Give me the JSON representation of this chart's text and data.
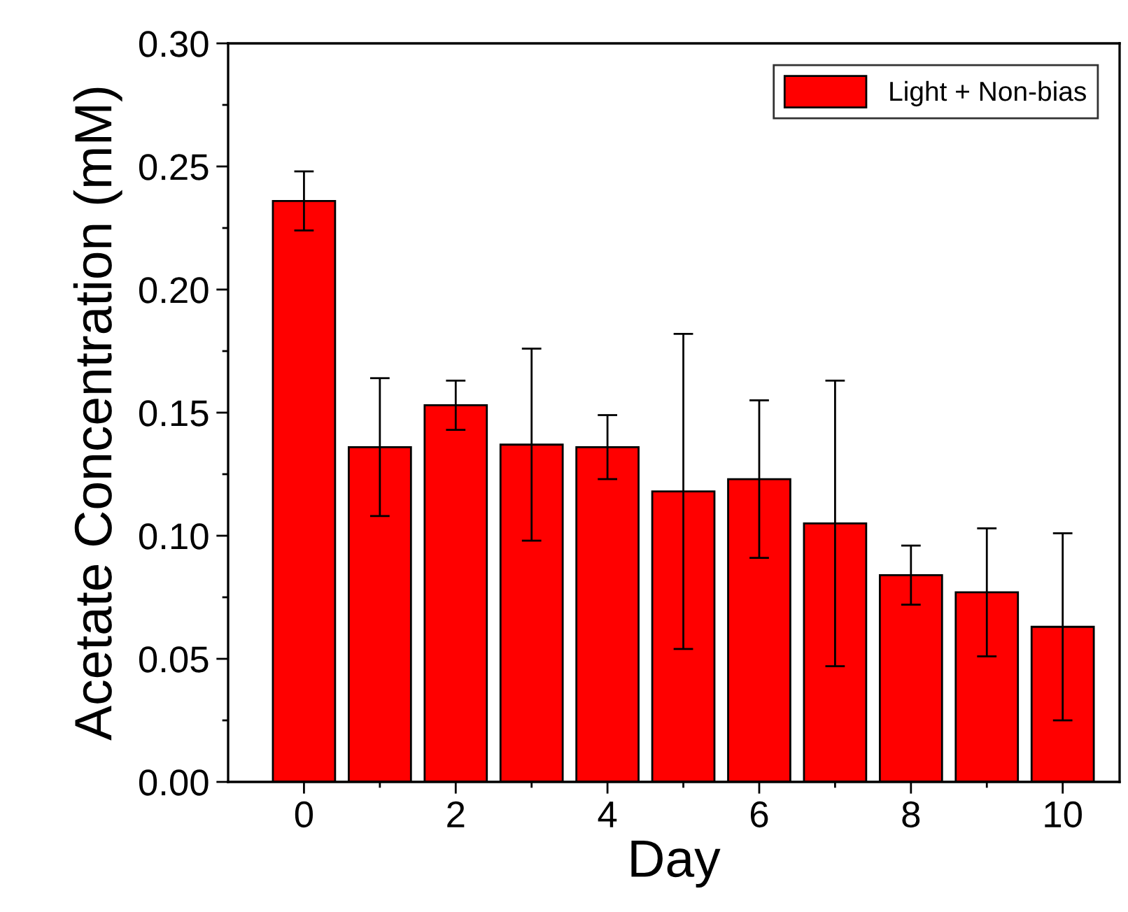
{
  "chart_data": {
    "type": "bar",
    "xlabel": "Day",
    "ylabel": "Acetate Concentration (mM)",
    "x": [
      0,
      1,
      2,
      3,
      4,
      5,
      6,
      7,
      8,
      9,
      10
    ],
    "series": [
      {
        "name": "Light + Non-bias",
        "color": "#ff0000",
        "values": [
          0.236,
          0.136,
          0.153,
          0.137,
          0.136,
          0.118,
          0.123,
          0.105,
          0.084,
          0.077,
          0.063
        ],
        "errors": [
          0.012,
          0.028,
          0.01,
          0.039,
          0.013,
          0.064,
          0.032,
          0.058,
          0.012,
          0.026,
          0.038
        ]
      }
    ],
    "xlim": [
      -1,
      10.75
    ],
    "ylim": [
      0,
      0.3
    ],
    "xticks": [
      0,
      {
        "value": 1,
        "label": null
      },
      2,
      {
        "value": 3,
        "label": null
      },
      4,
      {
        "value": 5,
        "label": null
      },
      6,
      {
        "value": 7,
        "label": null
      },
      8,
      {
        "value": 9,
        "label": null
      },
      10
    ],
    "yticks": [
      {
        "value": 0,
        "label": "0.00"
      },
      {
        "value": 0.025,
        "label": null
      },
      {
        "value": 0.05,
        "label": "0.05"
      },
      {
        "value": 0.075,
        "label": null
      },
      {
        "value": 0.1,
        "label": "0.10"
      },
      {
        "value": 0.125,
        "label": null
      },
      {
        "value": 0.15,
        "label": "0.15"
      },
      {
        "value": 0.175,
        "label": null
      },
      {
        "value": 0.2,
        "label": "0.20"
      },
      {
        "value": 0.225,
        "label": null
      },
      {
        "value": 0.25,
        "label": "0.25"
      },
      {
        "value": 0.275,
        "label": null
      },
      {
        "value": 0.3,
        "label": "0.30"
      }
    ],
    "grid": false,
    "legend": "top right"
  }
}
